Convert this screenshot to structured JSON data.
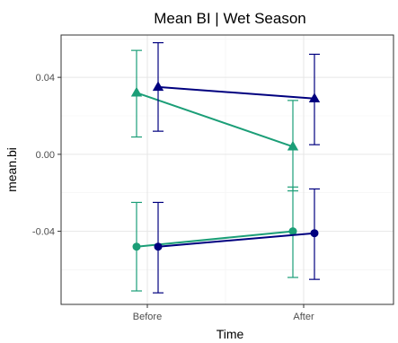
{
  "chart_data": {
    "type": "line",
    "title": "Mean BI | Wet Season",
    "xlabel": "Time",
    "ylabel": "mean.bi",
    "categories": [
      "Before",
      "After"
    ],
    "ylim": [
      -0.078,
      0.062
    ],
    "yticks": [
      -0.04,
      0.0,
      0.04
    ],
    "ytick_labels": [
      "-0.04",
      "0.00",
      "0.04"
    ],
    "grid": true,
    "legend": "none",
    "series": [
      {
        "color": "#1b9e77",
        "marker": "triangle",
        "values": [
          0.032,
          0.004
        ],
        "error_low": [
          0.009,
          -0.019
        ],
        "error_high": [
          0.054,
          0.028
        ]
      },
      {
        "color": "#00007f",
        "marker": "triangle",
        "values": [
          0.035,
          0.029
        ],
        "error_low": [
          0.012,
          0.005
        ],
        "error_high": [
          0.058,
          0.052
        ]
      },
      {
        "color": "#1b9e77",
        "marker": "circle",
        "values": [
          -0.048,
          -0.04
        ],
        "error_low": [
          -0.071,
          -0.064
        ],
        "error_high": [
          -0.025,
          -0.017
        ]
      },
      {
        "color": "#00007f",
        "marker": "circle",
        "values": [
          -0.048,
          -0.041
        ],
        "error_low": [
          -0.072,
          -0.065
        ],
        "error_high": [
          -0.025,
          -0.018
        ]
      }
    ]
  }
}
